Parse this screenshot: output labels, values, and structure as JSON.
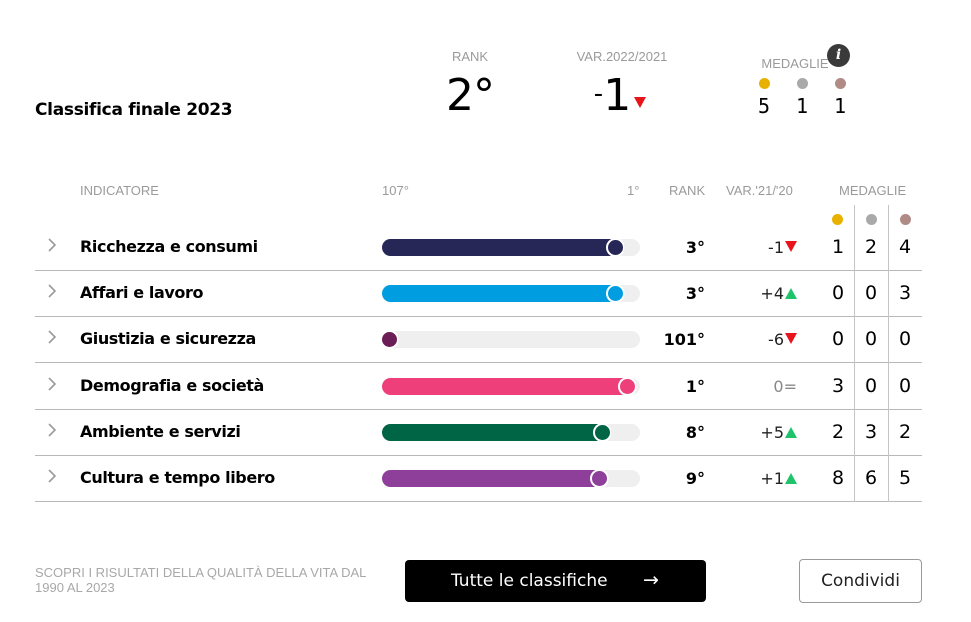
{
  "header": {
    "title": "Classifica finale 2023",
    "rank_label": "RANK",
    "rank_value": "2°",
    "var_label": "VAR.2022/2021",
    "var_sign": "-",
    "var_value": "1",
    "var_direction": "down",
    "medals_label": "MEDAGLIE",
    "info_icon": "i",
    "medals": [
      {
        "type": "gold",
        "color": "#e8b100",
        "count": "5"
      },
      {
        "type": "silver",
        "color": "#a9a9a9",
        "count": "1"
      },
      {
        "type": "bronze",
        "color": "#b08b86",
        "count": "1"
      }
    ]
  },
  "table": {
    "columns": {
      "indicator": "INDICATORE",
      "scale_min": "107°",
      "scale_max": "1°",
      "rank": "RANK",
      "var": "VAR.'21/'20",
      "medals": "MEDAGLIE"
    },
    "medal_colors": [
      "#e8b100",
      "#a9a9a9",
      "#b08b86"
    ],
    "rows": [
      {
        "name": "Ricchezza e consumi",
        "rank": "3°",
        "var": "-1",
        "dir": "down",
        "color": "#262657",
        "fill_pct": 94,
        "medals": [
          "1",
          "2",
          "4"
        ]
      },
      {
        "name": "Affari e lavoro",
        "rank": "3°",
        "var": "+4",
        "dir": "up",
        "color": "#009ee0",
        "fill_pct": 94,
        "medals": [
          "0",
          "0",
          "3"
        ]
      },
      {
        "name": "Giustizia e sicurezza",
        "rank": "101°",
        "var": "-6",
        "dir": "down",
        "color": "#6b1d55",
        "fill_pct": 6,
        "medals": [
          "0",
          "0",
          "0"
        ]
      },
      {
        "name": "Demografia e società",
        "rank": "1°",
        "var": "0=",
        "dir": "none",
        "color": "#ee3f7a",
        "fill_pct": 99,
        "medals": [
          "3",
          "0",
          "0"
        ]
      },
      {
        "name": "Ambiente e servizi",
        "rank": "8°",
        "var": "+5",
        "dir": "up",
        "color": "#006544",
        "fill_pct": 89,
        "medals": [
          "2",
          "3",
          "2"
        ]
      },
      {
        "name": "Cultura e tempo libero",
        "rank": "9°",
        "var": "+1",
        "dir": "up",
        "color": "#8e3f99",
        "fill_pct": 88,
        "medals": [
          "8",
          "6",
          "5"
        ]
      }
    ]
  },
  "footer": {
    "note": "SCOPRI I RISULTATI DELLA QUALITÀ DELLA VITA DAL 1990 AL 2023",
    "all_button": "Tutte le classifiche",
    "all_button_arrow": "→",
    "share_button": "Condividi"
  }
}
